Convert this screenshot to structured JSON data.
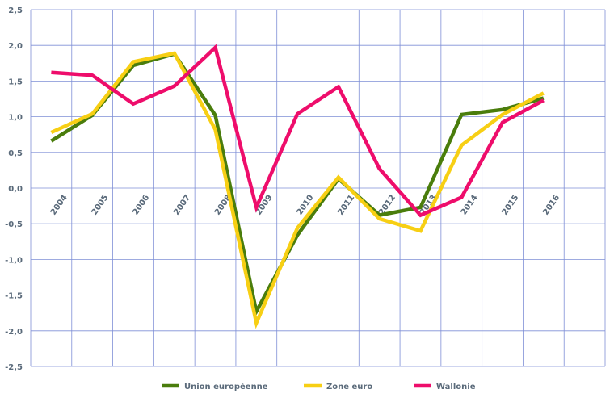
{
  "chart_data": {
    "type": "line",
    "x": [
      "2004",
      "2005",
      "2006",
      "2007",
      "2008",
      "2009",
      "2010",
      "2011",
      "2012",
      "2013",
      "2014",
      "2015",
      "2016"
    ],
    "ylim": [
      -2.5,
      2.5
    ],
    "yticks": [
      "2,5",
      "2,0",
      "1,5",
      "1,0",
      "0,5",
      "0,0",
      "-0,5",
      "-1,0",
      "-1,5",
      "-2,0",
      "-2,5"
    ],
    "grid": true,
    "legend_position": "bottom",
    "series": [
      {
        "name": "Union européenne",
        "color": "#4a7d0c",
        "values": [
          0.66,
          1.02,
          1.72,
          1.88,
          1.02,
          -1.73,
          -0.66,
          0.13,
          -0.38,
          -0.27,
          1.03,
          1.1,
          1.26
        ]
      },
      {
        "name": "Zone euro",
        "color": "#f7cf14",
        "values": [
          0.78,
          1.04,
          1.77,
          1.89,
          0.82,
          -1.89,
          -0.56,
          0.15,
          -0.43,
          -0.6,
          0.6,
          1.03,
          1.33
        ]
      },
      {
        "name": "Wallonie",
        "color": "#ee0d6b",
        "values": [
          1.62,
          1.58,
          1.18,
          1.43,
          1.97,
          -0.27,
          1.04,
          1.42,
          0.27,
          -0.38,
          -0.13,
          0.92,
          1.23
        ]
      }
    ]
  }
}
